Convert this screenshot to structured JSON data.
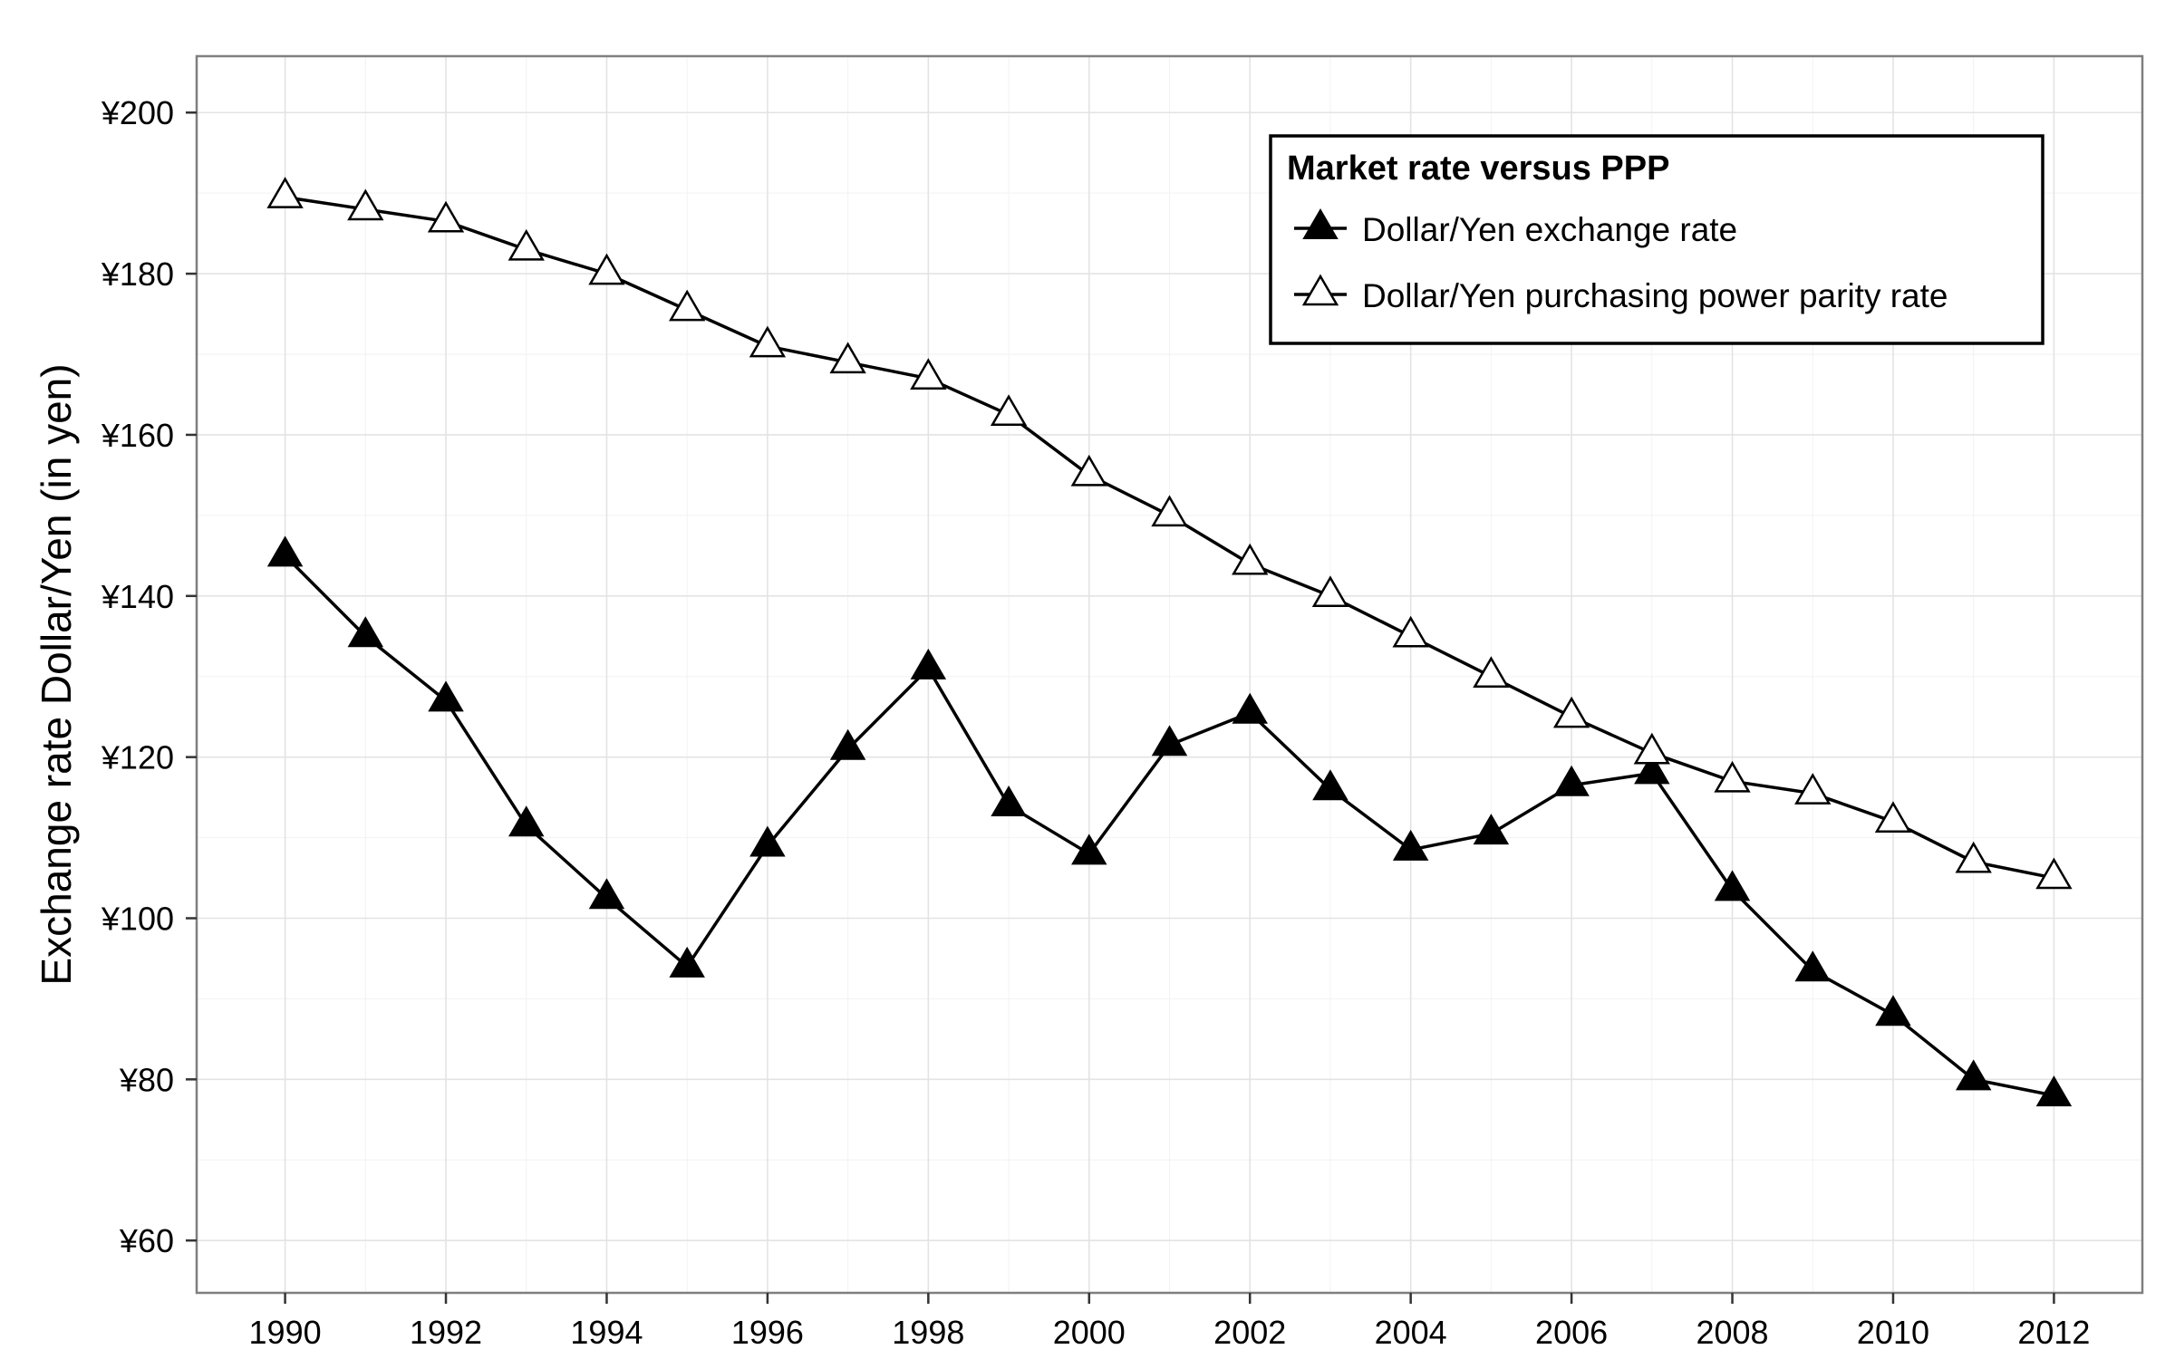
{
  "chart_data": {
    "type": "line",
    "title": "",
    "xlabel": "",
    "ylabel": "Exchange rate Dollar/Yen (in yen)",
    "x": [
      1990,
      1991,
      1992,
      1993,
      1994,
      1995,
      1996,
      1997,
      1998,
      1999,
      2000,
      2001,
      2002,
      2003,
      2004,
      2005,
      2006,
      2007,
      2008,
      2009,
      2010,
      2011,
      2012
    ],
    "x_ticks": [
      "1990",
      "1992",
      "1994",
      "1996",
      "1998",
      "2000",
      "2002",
      "2004",
      "2006",
      "2008",
      "2010",
      "2012"
    ],
    "y_ticks": [
      "¥60",
      "¥80",
      "¥100",
      "¥120",
      "¥140",
      "¥160",
      "¥180",
      "¥200"
    ],
    "y_tick_values": [
      60,
      80,
      100,
      120,
      140,
      160,
      180,
      200
    ],
    "xlim": [
      1988.9,
      2013.1
    ],
    "ylim": [
      53.5,
      207
    ],
    "grid": true,
    "legend": {
      "title": "Market rate versus PPP",
      "placement": "top-right"
    },
    "series": [
      {
        "name": "Dollar/Yen exchange rate",
        "marker": "filled-triangle",
        "values": [
          145,
          135,
          127,
          111.5,
          102.5,
          94,
          109,
          121,
          131,
          114,
          108,
          121.5,
          125.5,
          116,
          108.5,
          110.5,
          116.5,
          118,
          103.5,
          93.5,
          88,
          80,
          78
        ]
      },
      {
        "name": "Dollar/Yen purchasing power parity rate",
        "marker": "open-triangle",
        "values": [
          189.5,
          188,
          186.5,
          183,
          180,
          175.5,
          171,
          169,
          167,
          162.5,
          155,
          150,
          144,
          140,
          135,
          130,
          125,
          120.5,
          117,
          115.5,
          112,
          107,
          105
        ]
      }
    ]
  }
}
